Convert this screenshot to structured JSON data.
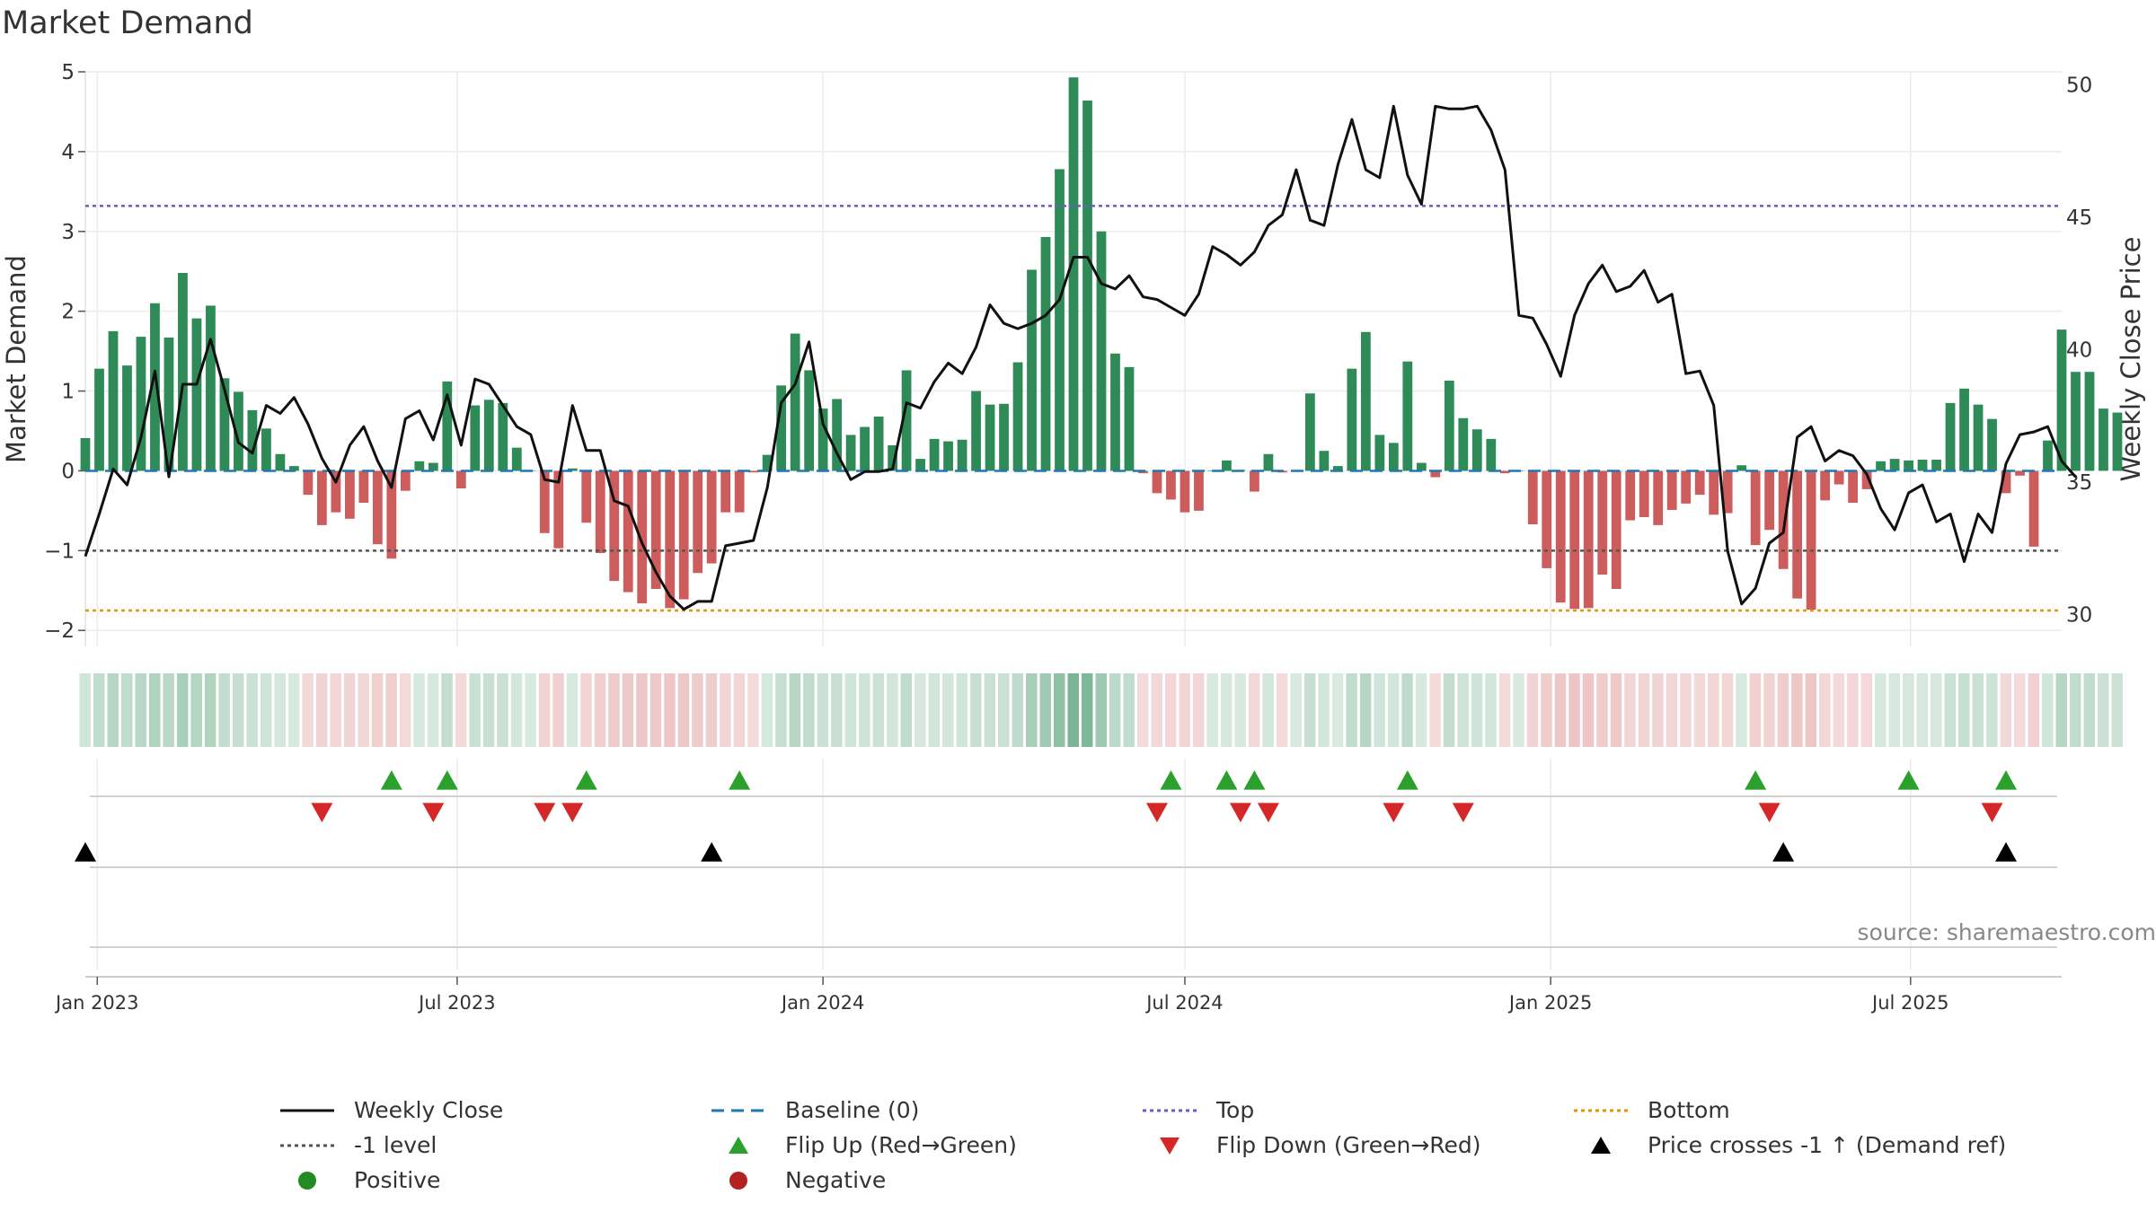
{
  "chart_data": {
    "type": "bar+line",
    "title": "Market Demand",
    "ylabel": "Market Demand",
    "y2label": "Weekly Close Price",
    "ylim": [
      -2.2,
      5.0
    ],
    "y2lim": [
      28.8,
      50.5
    ],
    "yticks": [
      -2,
      -1,
      0,
      1,
      2,
      3,
      4,
      5
    ],
    "y2ticks": [
      30,
      35,
      40,
      45,
      50
    ],
    "x_start": "2022-12-26",
    "x_end": "2025-09-15",
    "xticks": [
      {
        "date": "2023-01-01",
        "label": "Jan 2023"
      },
      {
        "date": "2023-07-01",
        "label": "Jul 2023"
      },
      {
        "date": "2024-01-01",
        "label": "Jan 2024"
      },
      {
        "date": "2024-07-01",
        "label": "Jul 2024"
      },
      {
        "date": "2025-01-01",
        "label": "Jan 2025"
      },
      {
        "date": "2025-07-01",
        "label": "Jul 2025"
      }
    ],
    "reference_lines": {
      "baseline": 0,
      "top": 3.32,
      "minus_one": -1,
      "bottom": -1.75
    },
    "demand": [
      0.41,
      1.28,
      1.75,
      1.32,
      1.68,
      2.1,
      1.67,
      2.48,
      1.91,
      2.07,
      1.16,
      0.99,
      0.76,
      0.53,
      0.21,
      0.06,
      -0.3,
      -0.68,
      -0.52,
      -0.6,
      -0.4,
      -0.92,
      -1.1,
      -0.25,
      0.12,
      0.1,
      1.12,
      -0.22,
      0.82,
      0.89,
      0.85,
      0.29,
      0.0,
      -0.78,
      -0.97,
      0.03,
      -0.65,
      -1.03,
      -1.38,
      -1.52,
      -1.66,
      -1.48,
      -1.72,
      -1.61,
      -1.28,
      -1.16,
      -0.52,
      -0.52,
      -0.02,
      0.2,
      1.07,
      1.72,
      1.26,
      0.78,
      0.9,
      0.45,
      0.55,
      0.68,
      0.32,
      1.26,
      0.15,
      0.4,
      0.37,
      0.39,
      1.0,
      0.83,
      0.84,
      1.36,
      2.52,
      2.93,
      3.78,
      4.93,
      4.64,
      3.0,
      1.47,
      1.3,
      -0.03,
      -0.28,
      -0.36,
      -0.52,
      -0.5,
      0.0,
      0.13,
      0.01,
      -0.26,
      0.21,
      -0.02,
      0.0,
      0.97,
      0.25,
      0.06,
      1.28,
      1.74,
      0.45,
      0.35,
      1.37,
      0.1,
      -0.08,
      1.13,
      0.66,
      0.52,
      0.4,
      -0.03,
      0.0,
      -0.67,
      -1.22,
      -1.65,
      -1.73,
      -1.72,
      -1.3,
      -1.48,
      -0.62,
      -0.58,
      -0.68,
      -0.49,
      -0.41,
      -0.3,
      -0.55,
      -0.53,
      0.07,
      -0.93,
      -0.74,
      -1.23,
      -1.6,
      -1.74,
      -0.37,
      -0.17,
      -0.4,
      -0.23,
      0.12,
      0.15,
      0.13,
      0.14,
      0.14,
      0.85,
      1.03,
      0.83,
      0.65,
      -0.28,
      -0.06,
      -0.95,
      0.38,
      1.77,
      1.24,
      1.24,
      0.78,
      0.73
    ],
    "weekly_close": [
      32.2,
      33.8,
      35.5,
      34.9,
      36.7,
      39.2,
      35.2,
      38.7,
      38.7,
      40.4,
      38.5,
      36.5,
      36.1,
      37.9,
      37.6,
      38.2,
      37.2,
      35.9,
      35.0,
      36.4,
      37.1,
      35.8,
      34.8,
      37.4,
      37.7,
      36.6,
      38.3,
      36.4,
      38.9,
      38.7,
      37.9,
      37.1,
      36.8,
      35.1,
      35.0,
      37.9,
      36.2,
      36.2,
      34.3,
      34.1,
      32.7,
      31.6,
      30.7,
      30.2,
      30.5,
      30.5,
      32.6,
      32.7,
      32.8,
      34.8,
      38.0,
      38.7,
      40.3,
      37.2,
      36.1,
      35.1,
      35.4,
      35.4,
      35.5,
      38.0,
      37.8,
      38.8,
      39.5,
      39.1,
      40.1,
      41.7,
      41.0,
      40.8,
      41.0,
      41.3,
      41.9,
      43.5,
      43.5,
      42.5,
      42.3,
      42.8,
      42.0,
      41.9,
      41.6,
      41.3,
      42.1,
      43.9,
      43.6,
      43.2,
      43.7,
      44.7,
      45.1,
      46.8,
      44.9,
      44.7,
      47.0,
      48.7,
      46.8,
      46.5,
      49.2,
      46.6,
      45.5,
      49.2,
      49.1,
      49.1,
      49.2,
      48.3,
      46.8,
      41.3,
      41.2,
      40.2,
      39.0,
      41.3,
      42.5,
      43.2,
      42.2,
      42.4,
      43.0,
      41.8,
      42.1,
      39.1,
      39.2,
      37.9,
      32.4,
      30.4,
      31.0,
      32.7,
      33.1,
      36.7,
      37.1,
      35.8,
      36.2,
      36.0,
      35.3,
      34.0,
      33.2,
      34.6,
      34.9,
      33.5,
      33.8,
      32.0,
      33.8,
      33.1,
      35.7,
      36.8,
      36.9,
      37.1,
      35.8,
      35.2
    ],
    "flip_up_dates": [
      "2023-05-29",
      "2023-06-26",
      "2023-09-04",
      "2023-11-20",
      "2024-06-24",
      "2024-07-22",
      "2024-08-05",
      "2024-10-21",
      "2025-04-14",
      "2025-06-30",
      "2025-08-18"
    ],
    "flip_down_dates": [
      "2023-04-24",
      "2023-06-19",
      "2023-08-14",
      "2023-08-28",
      "2024-06-17",
      "2024-07-29",
      "2024-08-12",
      "2024-10-14",
      "2024-11-18",
      "2025-04-21",
      "2025-08-11"
    ],
    "price_cross_dates": [
      "2022-12-26",
      "2023-11-06",
      "2025-04-28",
      "2025-08-18"
    ],
    "legend": [
      {
        "label": "Weekly Close",
        "marker": "line"
      },
      {
        "label": "Baseline (0)",
        "marker": "dashed"
      },
      {
        "label": "Top",
        "marker": "dotted-purple"
      },
      {
        "label": "Bottom",
        "marker": "dotted-orange"
      },
      {
        "label": "-1 level",
        "marker": "dotted-gray"
      },
      {
        "label": "Flip Up (Red→Green)",
        "marker": "triangle-up-green"
      },
      {
        "label": "Flip Down (Green→Red)",
        "marker": "triangle-down-red"
      },
      {
        "label": "Price crosses -1 ↑ (Demand ref)",
        "marker": "triangle-up-black"
      },
      {
        "label": "Positive",
        "marker": "dot-green"
      },
      {
        "label": "Negative",
        "marker": "dot-red"
      }
    ]
  },
  "colors": {
    "positive": "#2e8b57",
    "negative": "#cd5c5c",
    "price": "#111111",
    "baseline": "#1f77b4",
    "top": "#6a5acd",
    "bottom": "#e69500",
    "minus_one": "#555555",
    "flip_up": "#2ca02c",
    "flip_down": "#d62728",
    "cross": "#000000",
    "legend_positive": "#228b22",
    "legend_negative": "#b22222"
  },
  "source": "source: sharemaestro.com"
}
